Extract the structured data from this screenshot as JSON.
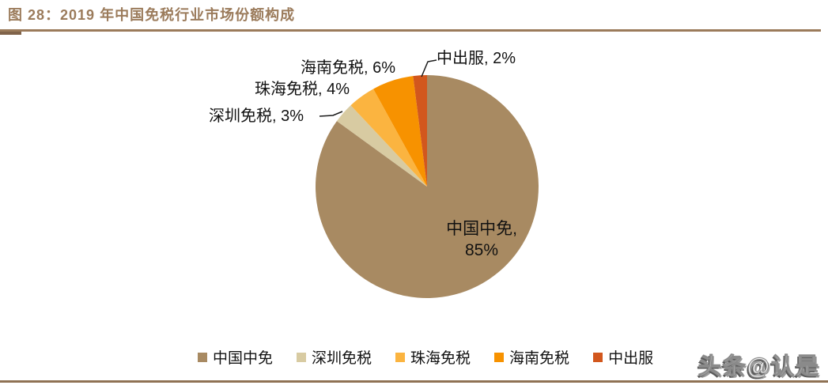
{
  "figure": {
    "title": "图 28：2019 年中国免税行业市场份额构成",
    "watermark": "头条@认是"
  },
  "chart_data": {
    "type": "pie",
    "title": "2019 年中国免税行业市场份额构成",
    "categories": [
      "中国中免",
      "深圳免税",
      "珠海免税",
      "海南免税",
      "中出服"
    ],
    "values": [
      85,
      3,
      4,
      6,
      2
    ],
    "unit": "%",
    "labels": [
      "中国中免, 85%",
      "深圳免税, 3%",
      "珠海免税, 4%",
      "海南免税, 6%",
      "中出服, 2%"
    ],
    "colors": [
      "#A88A62",
      "#D8CBA2",
      "#FBB440",
      "#F79200",
      "#D2571D"
    ],
    "start_angle": "12-oclock",
    "direction": "clockwise",
    "legend_position": "bottom",
    "largest_label_placement": "inside",
    "small_label_placement": "outside-callout"
  }
}
